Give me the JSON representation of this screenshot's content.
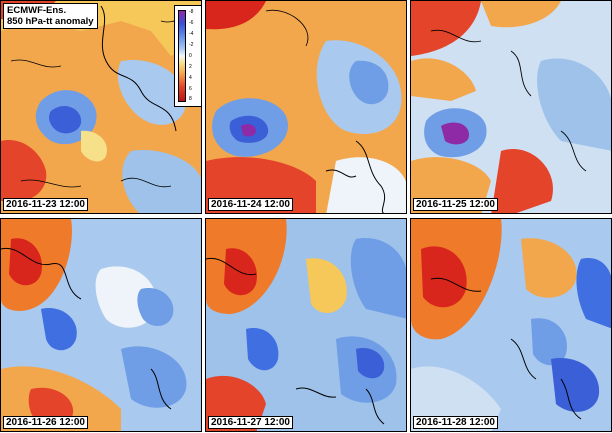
{
  "title": {
    "line1": "ECMWF-Ens.",
    "line2": "850 hPa-tt anomaly"
  },
  "legend": {
    "ticks": [
      "-8",
      "-6",
      "-4",
      "-2",
      "0",
      "2",
      "4",
      "6",
      "8"
    ]
  },
  "colors": {
    "strong_cold": "#6a3fc8",
    "cold": "#3f6fe0",
    "cool": "#9ec2ea",
    "neutral": "#eef4f9",
    "warm": "#f6c85a",
    "hot": "#ef7a2a",
    "strong_hot": "#d9261c",
    "coastline": "#000000"
  },
  "panels": [
    {
      "date": "2016-11-23 12:00",
      "warm_fraction": 0.65
    },
    {
      "date": "2016-11-24 12:00",
      "warm_fraction": 0.55
    },
    {
      "date": "2016-11-25 12:00",
      "warm_fraction": 0.45
    },
    {
      "date": "2016-11-26 12:00",
      "warm_fraction": 0.4
    },
    {
      "date": "2016-11-27 12:00",
      "warm_fraction": 0.4
    },
    {
      "date": "2016-11-28 12:00",
      "warm_fraction": 0.35
    }
  ]
}
